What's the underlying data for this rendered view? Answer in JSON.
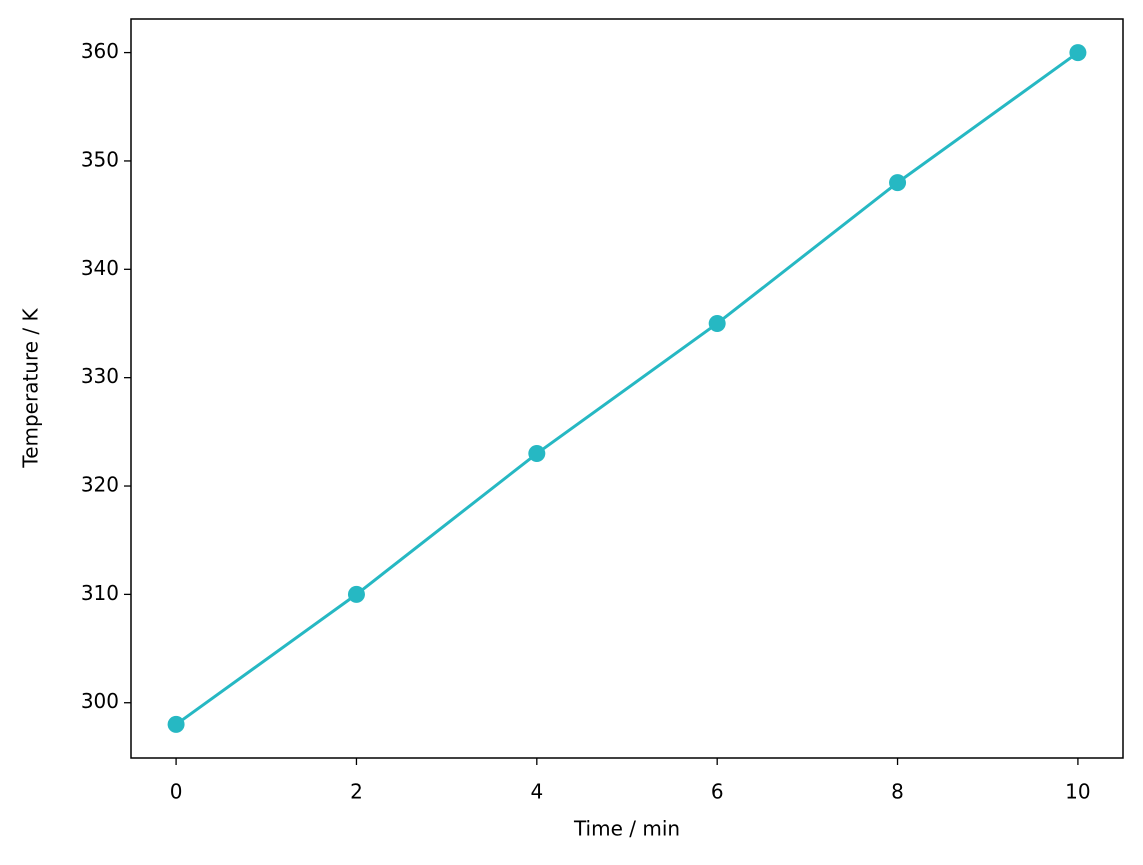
{
  "chart_data": {
    "type": "line",
    "x_label": "Time / min",
    "y_label": "Temperature / K",
    "x": [
      0,
      2,
      4,
      6,
      8,
      10
    ],
    "values": [
      298,
      310,
      323,
      335,
      348,
      360
    ],
    "color": "#26b8c3",
    "markers": true,
    "xlim": [
      -0.5,
      10.5
    ],
    "xticks": [
      0,
      2,
      4,
      6,
      8,
      10
    ],
    "ylim": [
      294.9,
      363.1
    ],
    "yticks": [
      300,
      310,
      320,
      330,
      340,
      350,
      360
    ],
    "grid": false
  }
}
